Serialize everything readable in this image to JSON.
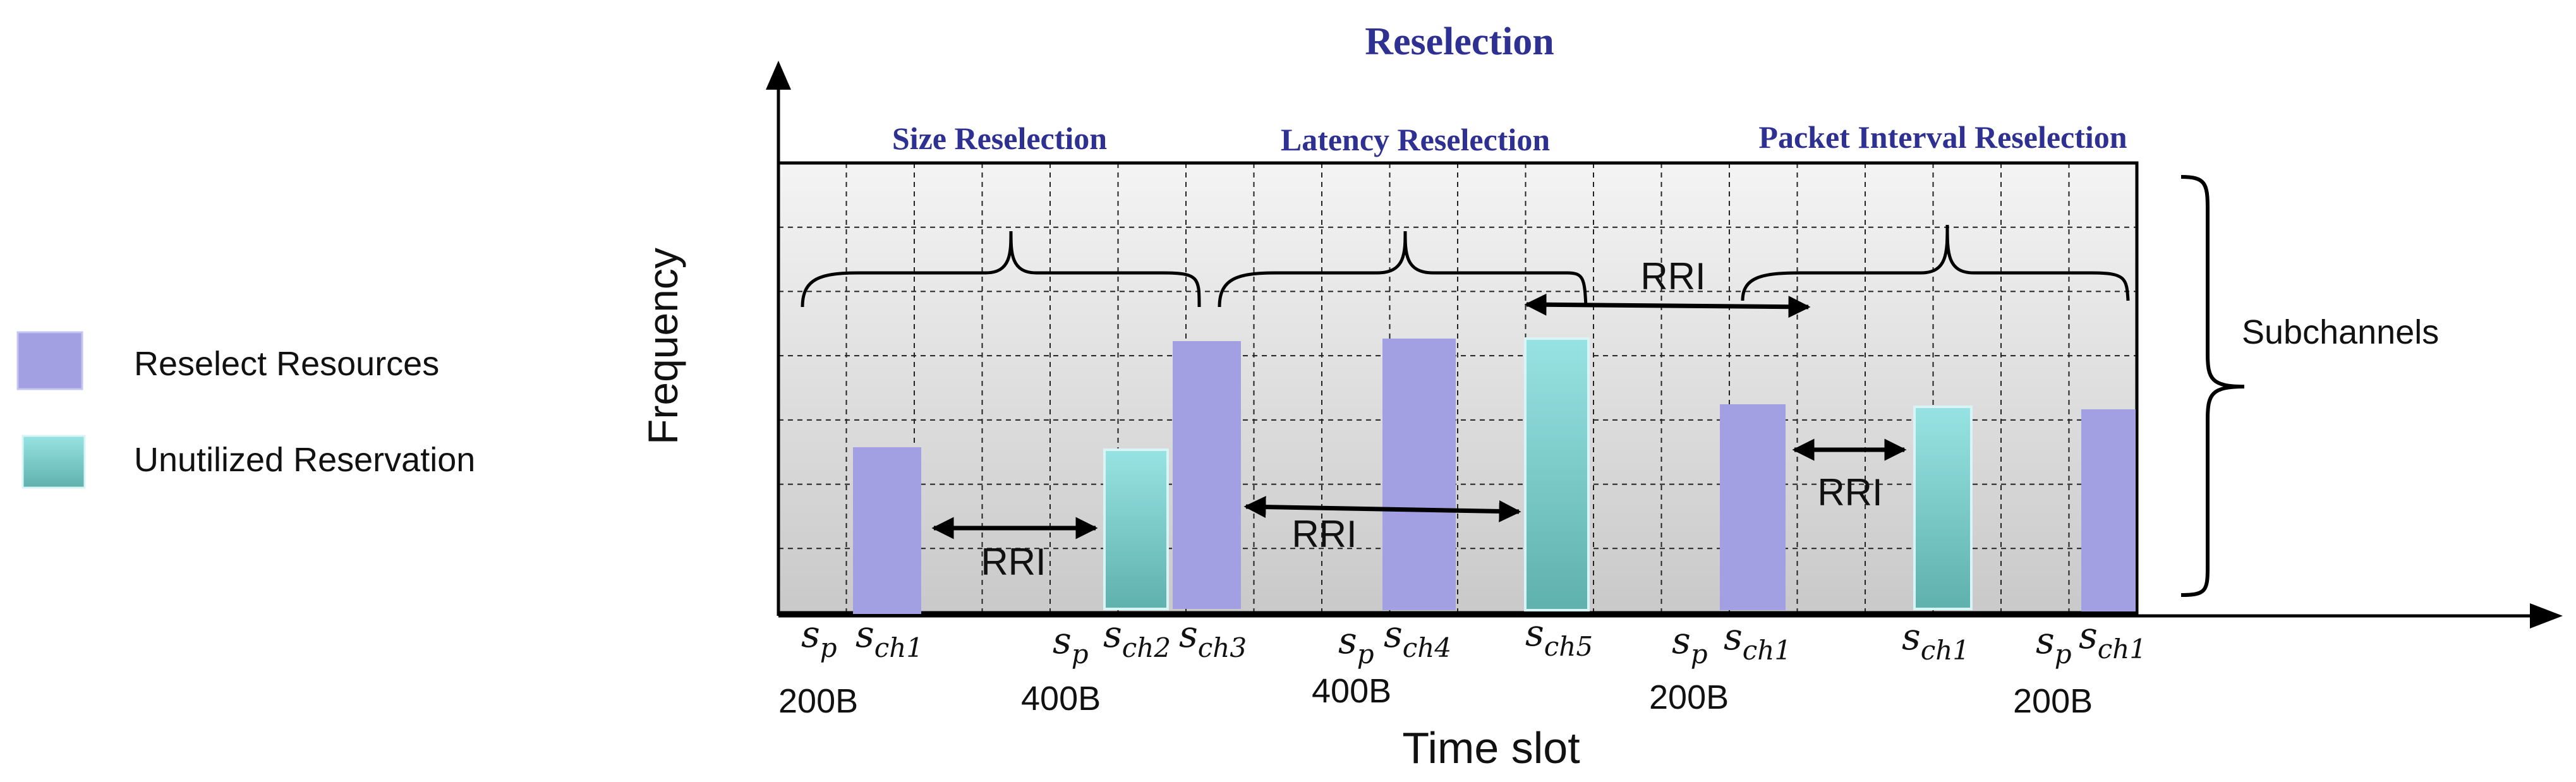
{
  "title": "Reselection",
  "sections": [
    {
      "label": "Size Reselection"
    },
    {
      "label": "Latency Reselection"
    },
    {
      "label": "Packet Interval Reselection"
    }
  ],
  "axes": {
    "x_label": "Time slot",
    "y_label": "Frequency"
  },
  "side_label": "Subchannels",
  "legend": [
    {
      "label": "Reselect Resources",
      "color": "#a2a0e3"
    },
    {
      "label": "Unutilized Reservation",
      "color": "#8fd6d8"
    }
  ],
  "rri_label": "RRI",
  "slot_labels": [
    {
      "base": "s",
      "sub": "p",
      "size": "200B"
    },
    {
      "base": "s",
      "sub": "ch1"
    },
    {
      "base": "s",
      "sub": "p",
      "size": "400B"
    },
    {
      "base": "s",
      "sub": "ch2"
    },
    {
      "base": "s",
      "sub": "ch3"
    },
    {
      "base": "s",
      "sub": "p",
      "size": "400B"
    },
    {
      "base": "s",
      "sub": "ch4"
    },
    {
      "base": "s",
      "sub": "ch5"
    },
    {
      "base": "s",
      "sub": "p",
      "size": "200B"
    },
    {
      "base": "s",
      "sub": "ch1"
    },
    {
      "base": "s",
      "sub": "ch1"
    },
    {
      "base": "s",
      "sub": "p",
      "size": "200B"
    },
    {
      "base": "s",
      "sub": "ch1"
    }
  ]
}
